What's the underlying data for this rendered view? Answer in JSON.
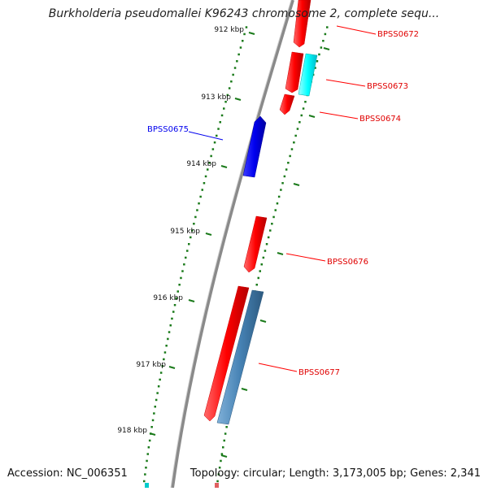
{
  "header": {
    "title": "Burkholderia pseudomallei K96243 chromosome 2, complete sequ..."
  },
  "footer": {
    "accession": "Accession: NC_006351",
    "summary": "Topology: circular; Length: 3,173,005 bp; Genes: 2,341"
  },
  "colors": {
    "forward_gene": "#ff0000",
    "reverse_gene": "#0000ee",
    "cyan_feature": "#00ffff",
    "steelblue_feature": "#4682b4",
    "tick": "#1a7a1a",
    "backbone": "#888888"
  },
  "ruler": {
    "labels": [
      "912 kbp",
      "913 kbp",
      "914 kbp",
      "915 kbp",
      "916 kbp",
      "917 kbp",
      "918 kbp"
    ]
  },
  "genes": [
    {
      "label": "BPSS0672",
      "strand": "forward"
    },
    {
      "label": "BPSS0673",
      "strand": "forward"
    },
    {
      "label": "BPSS0674",
      "strand": "forward"
    },
    {
      "label": "BPSS0675",
      "strand": "reverse"
    },
    {
      "label": "BPSS0676",
      "strand": "forward"
    },
    {
      "label": "BPSS0677",
      "strand": "forward"
    }
  ]
}
